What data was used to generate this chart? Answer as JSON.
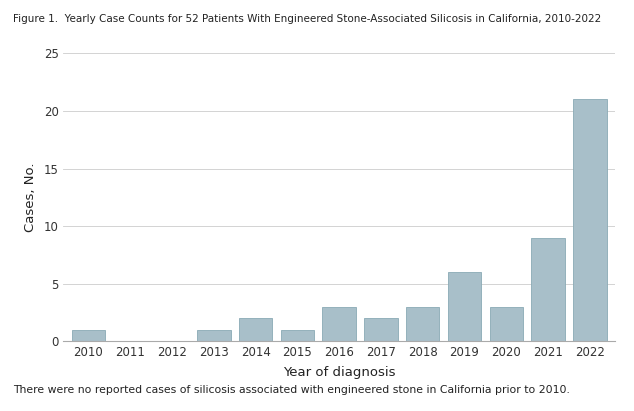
{
  "title": "Figure 1.  Yearly Case Counts for 52 Patients With Engineered Stone-Associated Silicosis in California, 2010-2022",
  "xlabel": "Year of diagnosis",
  "ylabel": "Cases, No.",
  "footnote": "There were no reported cases of silicosis associated with engineered stone in California prior to 2010.",
  "years": [
    2010,
    2011,
    2012,
    2013,
    2014,
    2015,
    2016,
    2017,
    2018,
    2019,
    2020,
    2021,
    2022
  ],
  "values": [
    1,
    0,
    0,
    1,
    2,
    1,
    3,
    2,
    3,
    6,
    3,
    9,
    21
  ],
  "bar_color": "#a8bfc9",
  "bar_edge_color": "#8aaab5",
  "ylim": [
    0,
    25
  ],
  "yticks": [
    0,
    5,
    10,
    15,
    20,
    25
  ],
  "background_color": "#ffffff",
  "grid_color": "#cccccc",
  "title_fontsize": 7.5,
  "axis_label_fontsize": 9.5,
  "tick_fontsize": 8.5,
  "footnote_fontsize": 7.8
}
